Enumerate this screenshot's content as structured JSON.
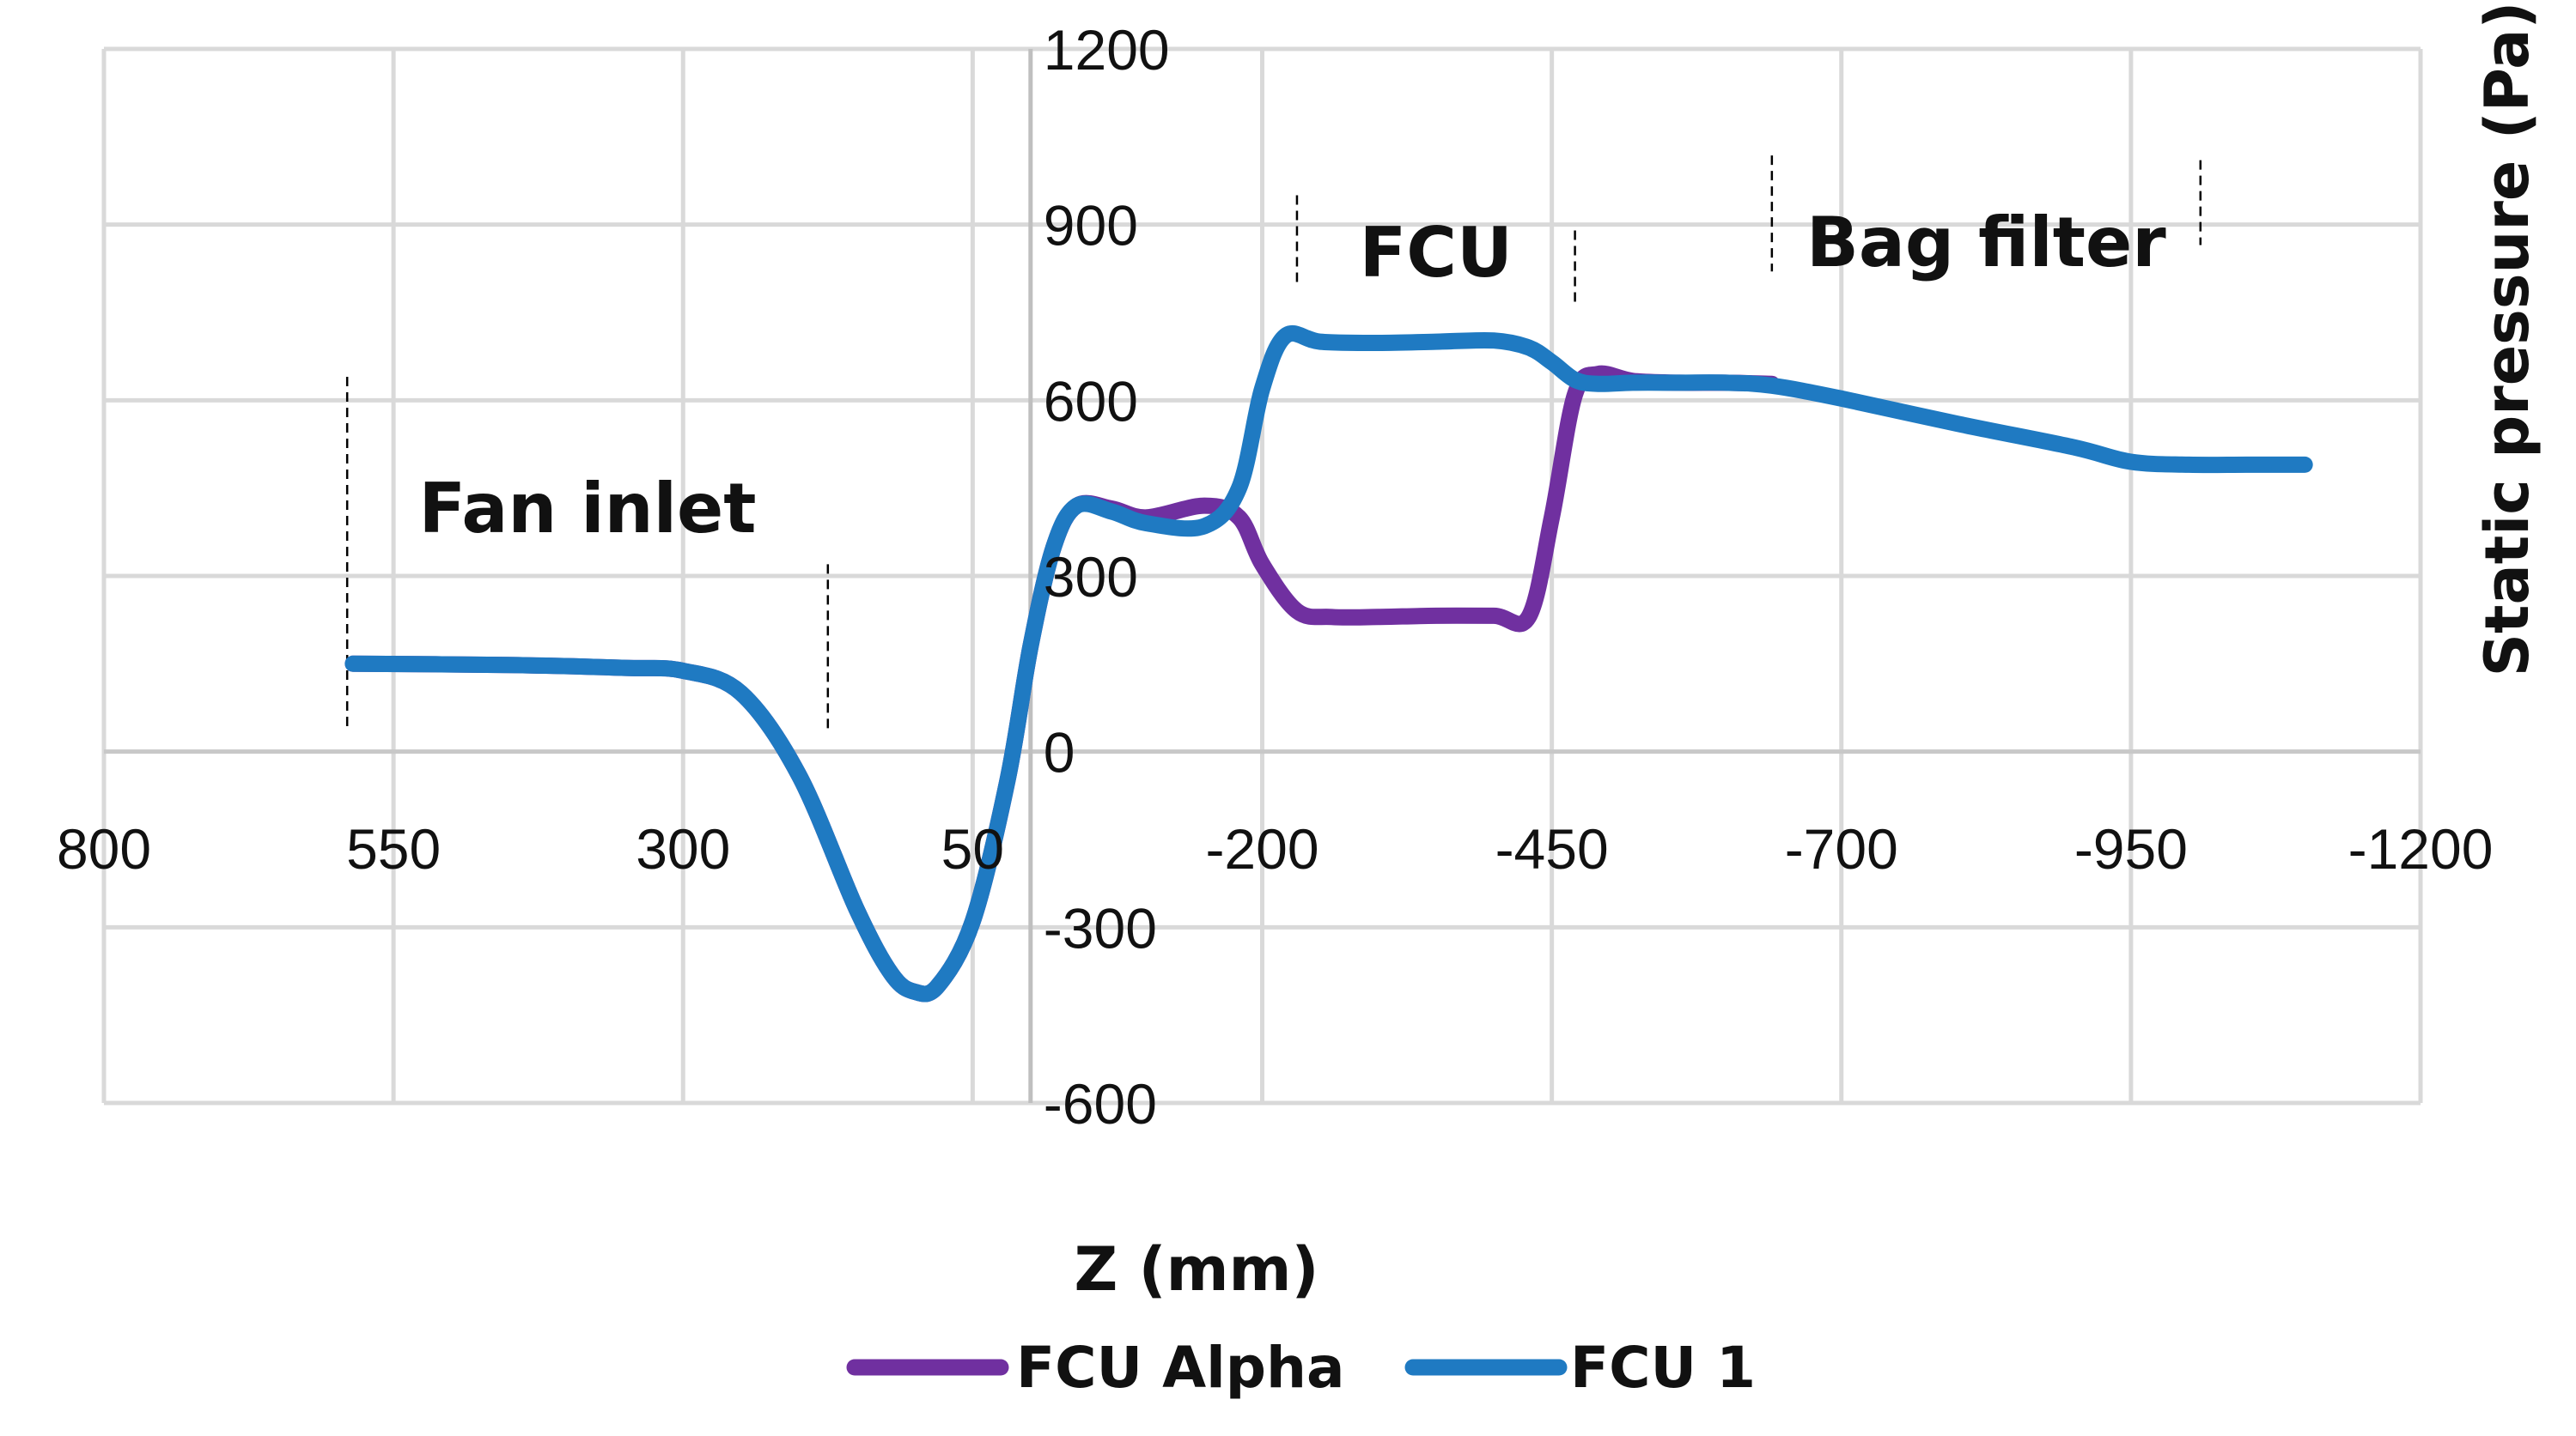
{
  "chart_data": {
    "type": "line",
    "title": "",
    "xlabel": "Z (mm)",
    "ylabel": "Static pressure (Pa)",
    "xlim": [
      800,
      -1200
    ],
    "ylim": [
      -600,
      1200
    ],
    "x_ticks": [
      800,
      550,
      300,
      50,
      -200,
      -450,
      -700,
      -950,
      -1200
    ],
    "y_ticks": [
      -600,
      -300,
      0,
      300,
      600,
      900,
      1200
    ],
    "grid": true,
    "legend_position": "bottom",
    "regions": [
      {
        "label": "Fan inlet",
        "start": 590,
        "end": 175
      },
      {
        "label": "FCU",
        "start": -230,
        "end": -470
      },
      {
        "label": "Bag filter",
        "start": -640,
        "end": -1010
      }
    ],
    "series": [
      {
        "name": "FCU Alpha",
        "color": "#7030a0",
        "x": [
          585,
          450,
          350,
          300,
          250,
          200,
          150,
          120,
          100,
          80,
          50,
          20,
          0,
          -20,
          -40,
          -70,
          -100,
          -150,
          -180,
          -200,
          -230,
          -260,
          -300,
          -350,
          -400,
          -430,
          -450,
          -470,
          -490,
          -520,
          -560,
          -600,
          -640
        ],
        "y": [
          150,
          148,
          143,
          138,
          100,
          -40,
          -270,
          -380,
          -410,
          -400,
          -290,
          -50,
          180,
          350,
          420,
          415,
          400,
          420,
          400,
          320,
          240,
          230,
          230,
          232,
          232,
          230,
          400,
          610,
          645,
          633,
          630,
          630,
          628
        ]
      },
      {
        "name": "FCU 1",
        "color": "#1f7ac2",
        "x": [
          585,
          450,
          350,
          300,
          250,
          200,
          150,
          120,
          100,
          80,
          50,
          20,
          0,
          -20,
          -40,
          -70,
          -100,
          -150,
          -180,
          -200,
          -220,
          -250,
          -300,
          -350,
          -400,
          -430,
          -450,
          -470,
          -490,
          -520,
          -560,
          -600,
          -640,
          -700,
          -800,
          -900,
          -950,
          -1000,
          -1050,
          -1100
        ],
        "y": [
          150,
          148,
          143,
          138,
          100,
          -40,
          -270,
          -380,
          -410,
          -400,
          -290,
          -50,
          180,
          350,
          420,
          410,
          390,
          385,
          450,
          620,
          710,
          700,
          698,
          700,
          702,
          690,
          665,
          635,
          628,
          630,
          630,
          630,
          625,
          603,
          560,
          520,
          495,
          490,
          490,
          490
        ]
      }
    ]
  }
}
